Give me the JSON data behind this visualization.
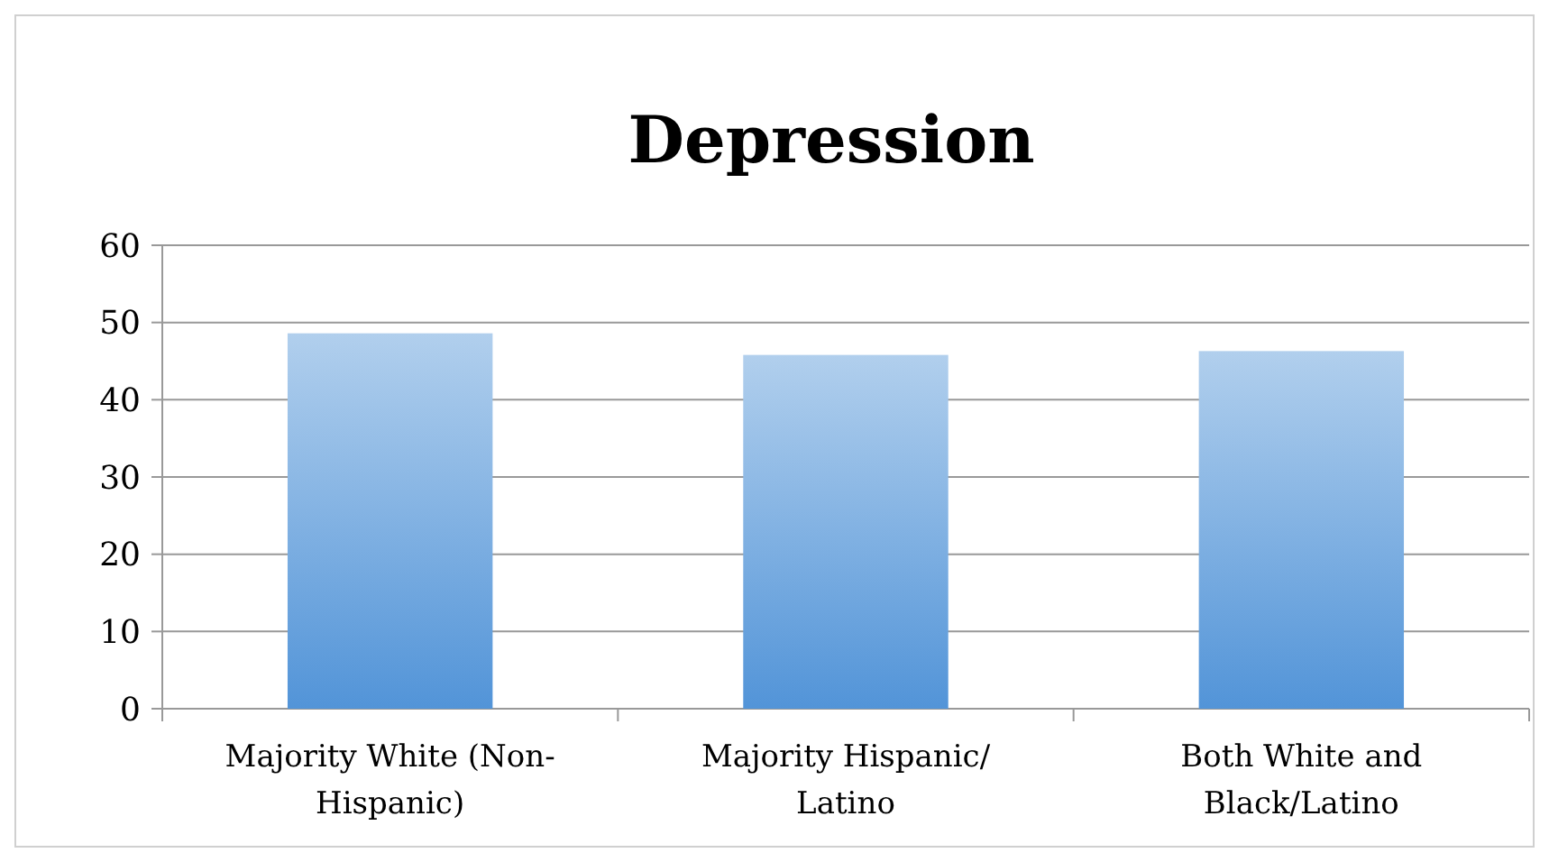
{
  "chart_data": {
    "type": "bar",
    "title": "Depression",
    "categories": [
      "Majority White (Non-Hispanic)",
      "Majority Hispanic/Latino",
      "Both White and Black/Latino"
    ],
    "values": [
      48.6,
      45.8,
      46.3
    ],
    "color": "#5294d8",
    "ylim": [
      0,
      60
    ],
    "yticks": [
      0,
      10,
      20,
      30,
      40,
      50,
      60
    ],
    "grid": "y"
  }
}
